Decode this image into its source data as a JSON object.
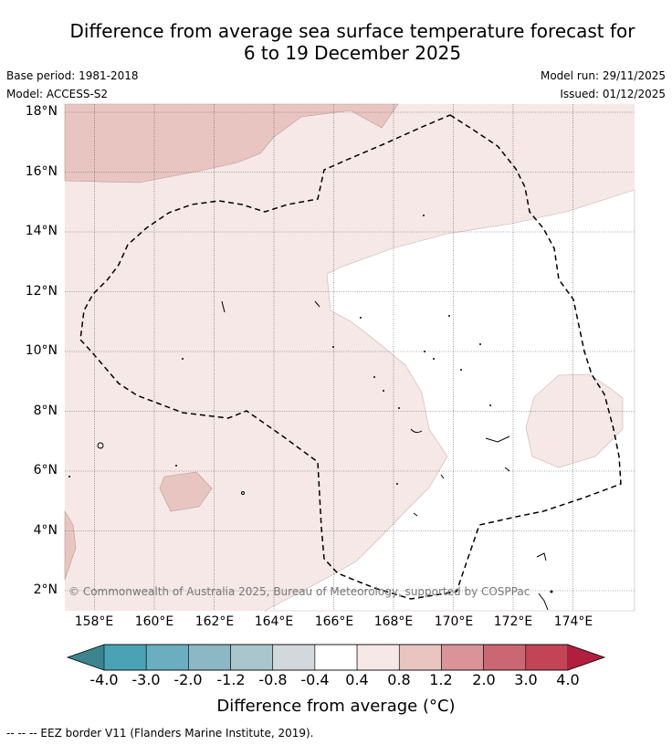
{
  "header": {
    "title_line1": "Difference from average sea surface temperature forecast for",
    "title_line2": "6 to 19 December 2025",
    "base_period": "Base period: 1981-2018",
    "model": "Model: ACCESS-S2",
    "model_run": "Model run: 29/11/2025",
    "issued": "Issued: 01/12/2025"
  },
  "map": {
    "lat_labels": [
      "18°N",
      "16°N",
      "14°N",
      "12°N",
      "10°N",
      "8°N",
      "6°N",
      "4°N",
      "2°N"
    ],
    "lon_labels": [
      "158°E",
      "160°E",
      "162°E",
      "164°E",
      "166°E",
      "168°E",
      "170°E",
      "172°E",
      "174°E"
    ],
    "copyright": "© Commonwealth of Australia 2025, Bureau of Meteorology, supported by COSPPac"
  },
  "colorbar": {
    "tick_labels": [
      "-4.0",
      "-3.0",
      "-2.0",
      "-1.2",
      "-0.8",
      "-0.4",
      "0.4",
      "0.8",
      "1.2",
      "2.0",
      "3.0",
      "4.0"
    ],
    "colors": [
      "#3c858e",
      "#4aa3b4",
      "#6aaebf",
      "#8bb8c4",
      "#a8c6cb",
      "#d2d8db",
      "#ffffff",
      "#f5e8e6",
      "#e9c5c1",
      "#da9399",
      "#cb6673",
      "#c34455",
      "#b21f3e"
    ],
    "title": "Difference from average (°C)"
  },
  "footnote": "--  --  -- EEZ border V11 (Flanders Marine Institute, 2019)."
}
